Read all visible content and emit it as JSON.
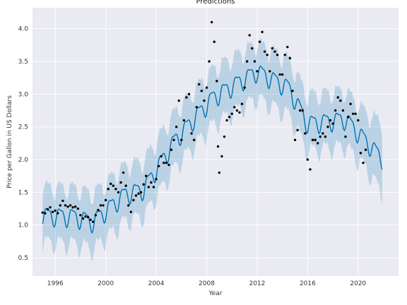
{
  "chart_data": {
    "type": "line",
    "title": "Predictions",
    "xlabel": "Year",
    "ylabel": "Price per Gallon in US Dollars",
    "xlim": [
      1994.2,
      2023.2
    ],
    "ylim": [
      0.22,
      4.32
    ],
    "x_ticks": [
      1996,
      2000,
      2004,
      2008,
      2012,
      2016,
      2020
    ],
    "y_ticks": [
      0.5,
      1.0,
      1.5,
      2.0,
      2.5,
      3.0,
      3.5,
      4.0
    ],
    "grid": true,
    "colors": {
      "background": "#eaeaf2",
      "grid": "#ffffff",
      "forecast_line": "#0072b2",
      "interval": "#0072b2",
      "observed_points": "#000000"
    },
    "trend_knots": [
      [
        1995,
        1.15
      ],
      [
        1997.5,
        1.13
      ],
      [
        1999,
        1.05
      ],
      [
        2001.5,
        1.47
      ],
      [
        2003,
        1.55
      ],
      [
        2005.5,
        2.3
      ],
      [
        2008.5,
        2.95
      ],
      [
        2012,
        3.35
      ],
      [
        2014.5,
        3.1
      ],
      [
        2016,
        2.55
      ],
      [
        2019,
        2.62
      ],
      [
        2022,
        2.0
      ]
    ],
    "seasonal_amplitude": 0.13,
    "interval_half_width": 0.42,
    "forecast_start": 1995.0,
    "forecast_end": 2021.9,
    "observed_end": 2020.6,
    "observed_points": [
      [
        1995.0,
        1.19
      ],
      [
        1995.2,
        1.18
      ],
      [
        1995.4,
        1.24
      ],
      [
        1995.6,
        1.27
      ],
      [
        1995.8,
        1.2
      ],
      [
        1996.0,
        1.22
      ],
      [
        1996.2,
        1.18
      ],
      [
        1996.4,
        1.3
      ],
      [
        1996.6,
        1.37
      ],
      [
        1996.8,
        1.3
      ],
      [
        1997.0,
        1.28
      ],
      [
        1997.2,
        1.3
      ],
      [
        1997.4,
        1.27
      ],
      [
        1997.6,
        1.28
      ],
      [
        1997.8,
        1.25
      ],
      [
        1998.0,
        1.15
      ],
      [
        1998.2,
        1.1
      ],
      [
        1998.4,
        1.13
      ],
      [
        1998.6,
        1.12
      ],
      [
        1998.8,
        1.08
      ],
      [
        1999.0,
        1.05
      ],
      [
        1999.2,
        1.15
      ],
      [
        1999.4,
        1.23
      ],
      [
        1999.6,
        1.3
      ],
      [
        1999.8,
        1.3
      ],
      [
        2000.0,
        1.38
      ],
      [
        2000.2,
        1.55
      ],
      [
        2000.4,
        1.63
      ],
      [
        2000.6,
        1.6
      ],
      [
        2000.8,
        1.55
      ],
      [
        2001.0,
        1.5
      ],
      [
        2001.2,
        1.65
      ],
      [
        2001.4,
        1.8
      ],
      [
        2001.6,
        1.6
      ],
      [
        2001.8,
        1.3
      ],
      [
        2002.0,
        1.2
      ],
      [
        2002.2,
        1.38
      ],
      [
        2002.4,
        1.45
      ],
      [
        2002.6,
        1.48
      ],
      [
        2002.8,
        1.5
      ],
      [
        2003.0,
        1.62
      ],
      [
        2003.2,
        1.75
      ],
      [
        2003.4,
        1.58
      ],
      [
        2003.6,
        1.65
      ],
      [
        2003.8,
        1.58
      ],
      [
        2004.0,
        1.7
      ],
      [
        2004.2,
        1.9
      ],
      [
        2004.4,
        2.05
      ],
      [
        2004.6,
        1.95
      ],
      [
        2004.8,
        1.95
      ],
      [
        2005.0,
        1.92
      ],
      [
        2005.2,
        2.15
      ],
      [
        2005.4,
        2.3
      ],
      [
        2005.6,
        2.5
      ],
      [
        2005.8,
        2.9
      ],
      [
        2006.0,
        2.3
      ],
      [
        2006.2,
        2.6
      ],
      [
        2006.4,
        2.95
      ],
      [
        2006.6,
        3.0
      ],
      [
        2006.8,
        2.4
      ],
      [
        2007.0,
        2.3
      ],
      [
        2007.2,
        2.8
      ],
      [
        2007.4,
        3.15
      ],
      [
        2007.6,
        3.05
      ],
      [
        2007.8,
        2.9
      ],
      [
        2008.0,
        3.1
      ],
      [
        2008.2,
        3.5
      ],
      [
        2008.4,
        4.1
      ],
      [
        2008.6,
        3.8
      ],
      [
        2008.8,
        3.2
      ],
      [
        2008.9,
        2.2
      ],
      [
        2009.0,
        1.8
      ],
      [
        2009.2,
        2.05
      ],
      [
        2009.4,
        2.35
      ],
      [
        2009.6,
        2.6
      ],
      [
        2009.8,
        2.65
      ],
      [
        2010.0,
        2.7
      ],
      [
        2010.2,
        2.8
      ],
      [
        2010.4,
        2.75
      ],
      [
        2010.6,
        2.72
      ],
      [
        2010.8,
        2.85
      ],
      [
        2011.0,
        3.1
      ],
      [
        2011.2,
        3.5
      ],
      [
        2011.4,
        3.9
      ],
      [
        2011.6,
        3.7
      ],
      [
        2011.8,
        3.5
      ],
      [
        2012.0,
        3.35
      ],
      [
        2012.2,
        3.8
      ],
      [
        2012.4,
        3.95
      ],
      [
        2012.6,
        3.65
      ],
      [
        2012.8,
        3.6
      ],
      [
        2013.0,
        3.35
      ],
      [
        2013.2,
        3.7
      ],
      [
        2013.4,
        3.65
      ],
      [
        2013.6,
        3.6
      ],
      [
        2013.8,
        3.3
      ],
      [
        2014.0,
        3.3
      ],
      [
        2014.2,
        3.6
      ],
      [
        2014.4,
        3.72
      ],
      [
        2014.6,
        3.55
      ],
      [
        2014.8,
        3.05
      ],
      [
        2015.0,
        2.3
      ],
      [
        2015.2,
        2.45
      ],
      [
        2015.4,
        2.75
      ],
      [
        2015.6,
        2.75
      ],
      [
        2015.8,
        2.4
      ],
      [
        2016.0,
        2.0
      ],
      [
        2016.2,
        1.85
      ],
      [
        2016.4,
        2.3
      ],
      [
        2016.6,
        2.3
      ],
      [
        2016.8,
        2.25
      ],
      [
        2017.0,
        2.35
      ],
      [
        2017.2,
        2.4
      ],
      [
        2017.4,
        2.35
      ],
      [
        2017.6,
        2.5
      ],
      [
        2017.8,
        2.6
      ],
      [
        2018.0,
        2.55
      ],
      [
        2018.2,
        2.75
      ],
      [
        2018.4,
        2.95
      ],
      [
        2018.6,
        2.9
      ],
      [
        2018.8,
        2.75
      ],
      [
        2019.0,
        2.35
      ],
      [
        2019.2,
        2.65
      ],
      [
        2019.4,
        2.85
      ],
      [
        2019.6,
        2.7
      ],
      [
        2019.8,
        2.7
      ],
      [
        2020.0,
        2.6
      ],
      [
        2020.2,
        2.1
      ],
      [
        2020.4,
        1.95
      ],
      [
        2020.6,
        2.15
      ]
    ]
  }
}
